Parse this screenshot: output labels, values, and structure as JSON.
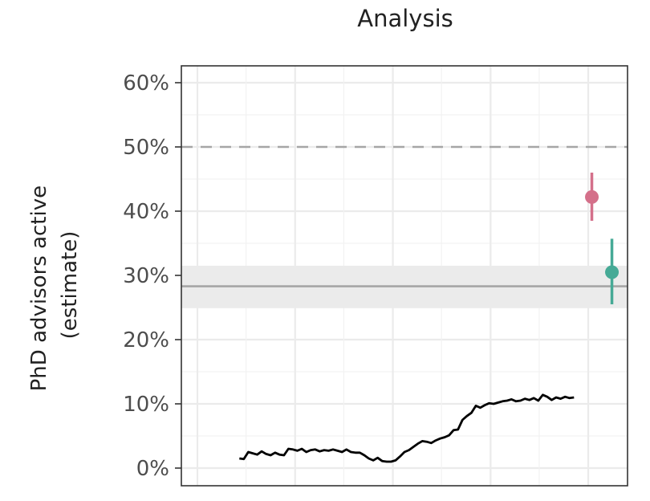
{
  "chart_data": {
    "type": "line",
    "title": "Analysis",
    "ylabel_lines": [
      "PhD advisors active",
      "(estimate)"
    ],
    "ylim": [
      -2,
      63
    ],
    "xlim": [
      0,
      100
    ],
    "yticks": [
      0,
      10,
      20,
      30,
      40,
      50,
      60
    ],
    "ytick_labels": [
      "0%",
      "10%",
      "20%",
      "30%",
      "40%",
      "50%",
      "60%"
    ],
    "grid": true,
    "reference_lines": [
      {
        "kind": "dashed",
        "y": 50,
        "color": "#a6a6a6"
      },
      {
        "kind": "solid",
        "y": 28.3,
        "band": [
          24.9,
          31.5
        ],
        "color": "#a6a6a6",
        "band_color": "#ebebeb"
      }
    ],
    "series": [
      {
        "kind": "line",
        "color": "#000000",
        "x": [
          13,
          14,
          15,
          16,
          17,
          18,
          19,
          20,
          21,
          22,
          23,
          24,
          25,
          26,
          27,
          28,
          29,
          30,
          31,
          32,
          33,
          34,
          35,
          36,
          37,
          38,
          39,
          40,
          41,
          42,
          43,
          44,
          45,
          46,
          47,
          48,
          49,
          50,
          51,
          52,
          53,
          54,
          55,
          56,
          57,
          58,
          59,
          60,
          61,
          62,
          63,
          64,
          65,
          66,
          67,
          68,
          69,
          70,
          71,
          72,
          73,
          74,
          75,
          76,
          77,
          78,
          79,
          80,
          81,
          82,
          83,
          84,
          85,
          86,
          87,
          88
        ],
        "y": [
          1.5,
          1.4,
          2.5,
          2.3,
          2.1,
          2.6,
          2.2,
          2.0,
          2.4,
          2.1,
          2.0,
          3.0,
          2.9,
          2.7,
          3.0,
          2.5,
          2.8,
          2.9,
          2.6,
          2.8,
          2.7,
          2.9,
          2.7,
          2.5,
          2.9,
          2.5,
          2.4,
          2.4,
          2.0,
          1.5,
          1.2,
          1.6,
          1.1,
          1.0,
          1.0,
          1.2,
          1.8,
          2.5,
          2.8,
          3.3,
          3.8,
          4.2,
          4.1,
          3.9,
          4.3,
          4.6,
          4.8,
          5.1,
          5.9,
          6.0,
          7.5,
          8.1,
          8.6,
          9.7,
          9.4,
          9.8,
          10.1,
          10.0,
          10.2,
          10.4,
          10.5,
          10.7,
          10.4,
          10.5,
          10.8,
          10.6,
          10.9,
          10.5,
          11.4,
          11.1,
          10.6,
          11.0,
          10.8,
          11.1,
          10.9,
          11.0
        ]
      },
      {
        "kind": "point",
        "color": "#d4708a",
        "x": 92,
        "y": 42.2,
        "ymin": 38.5,
        "ymax": 46.0
      },
      {
        "kind": "point",
        "color": "#46aa96",
        "x": 96.5,
        "y": 30.5,
        "ymin": 25.5,
        "ymax": 35.7
      }
    ]
  }
}
